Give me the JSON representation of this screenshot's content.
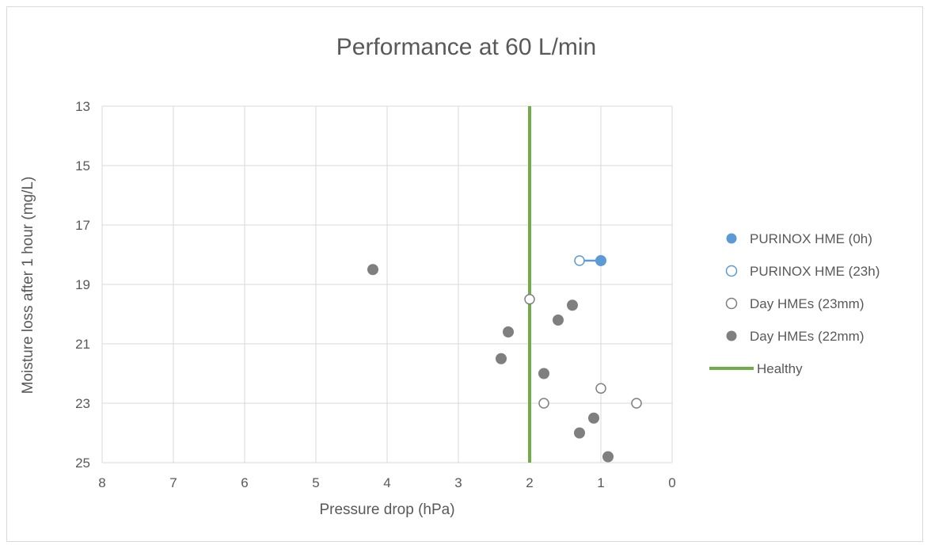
{
  "chart_data": {
    "type": "scatter",
    "title": "Performance at 60 L/min",
    "xlabel": "Pressure drop (hPa)",
    "ylabel": "Moisture loss after 1 hour (mg/L)",
    "xlim": [
      8,
      0
    ],
    "ylim": [
      25,
      13
    ],
    "x_reversed": true,
    "y_reversed": true,
    "x_ticks": [
      8,
      7,
      6,
      5,
      4,
      3,
      2,
      1,
      0
    ],
    "y_ticks": [
      13,
      15,
      17,
      19,
      21,
      23,
      25
    ],
    "grid": true,
    "legend_position": "right",
    "series": [
      {
        "name": "PURINOX HME (0h)",
        "marker": "filled",
        "color": "#5b9bd5",
        "points": [
          [
            1.0,
            18.2
          ]
        ]
      },
      {
        "name": "PURINOX HME (23h)",
        "marker": "open",
        "color": "#5b9bd5",
        "points": [
          [
            1.3,
            18.2
          ]
        ]
      },
      {
        "name": "Day HMEs (23mm)",
        "marker": "open",
        "color": "#7f7f7f",
        "points": [
          [
            2.0,
            19.5
          ],
          [
            1.8,
            23.0
          ],
          [
            1.0,
            22.5
          ],
          [
            0.5,
            23.0
          ]
        ]
      },
      {
        "name": "Day HMEs (22mm)",
        "marker": "filled",
        "color": "#7f7f7f",
        "points": [
          [
            4.2,
            18.5
          ],
          [
            1.4,
            19.7
          ],
          [
            1.6,
            20.2
          ],
          [
            2.3,
            20.6
          ],
          [
            2.4,
            21.5
          ],
          [
            1.8,
            22.0
          ],
          [
            1.1,
            23.5
          ],
          [
            1.3,
            24.0
          ],
          [
            0.9,
            24.8
          ]
        ]
      },
      {
        "name": "Healthy",
        "marker": "line",
        "color": "#70ad47",
        "points": [
          [
            2.0,
            13
          ],
          [
            2.0,
            25
          ]
        ]
      }
    ],
    "connector": {
      "from": [
        1.3,
        18.2
      ],
      "to": [
        1.0,
        18.2
      ],
      "color": "#5b9bd5"
    }
  }
}
